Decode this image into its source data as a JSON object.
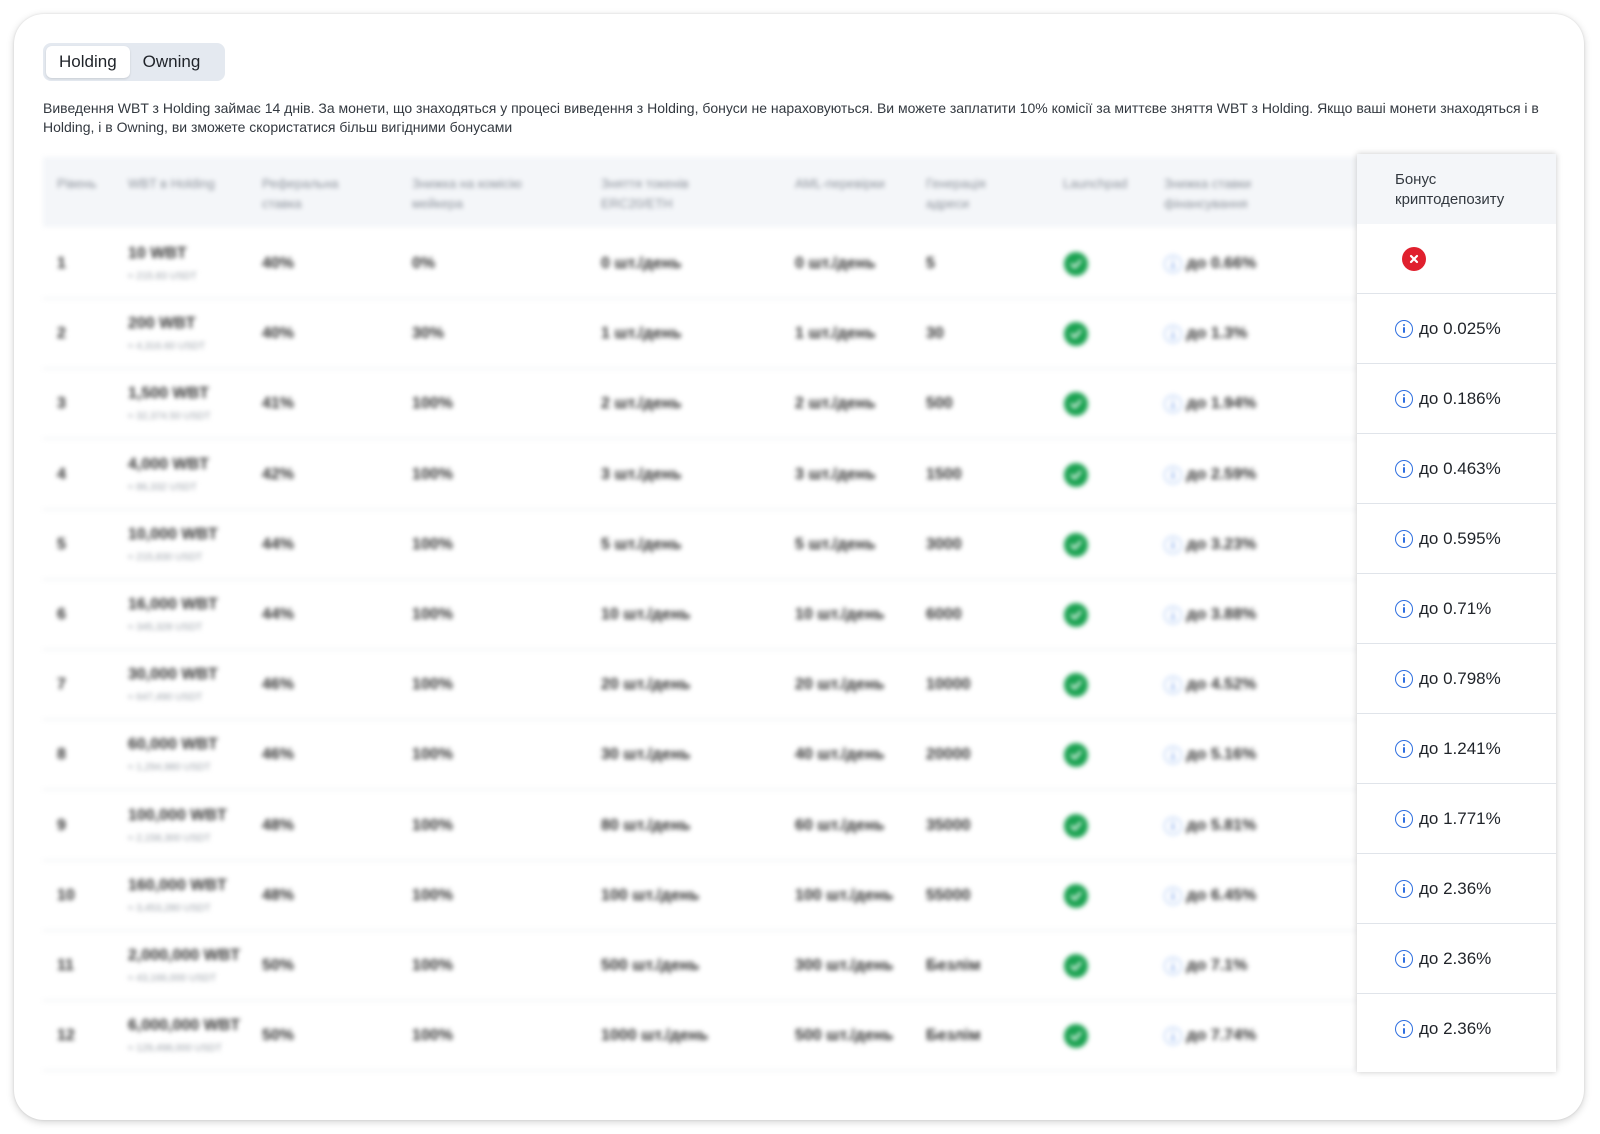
{
  "tabs": [
    {
      "label": "Holding",
      "active": true
    },
    {
      "label": "Owning",
      "active": false
    }
  ],
  "description": "Виведення WBT з Holding займає 14 днів. За монети, що знаходяться у процесі виведення з Holding, бонуси не нараховуються. Ви можете заплатити 10% комісії за миттєве зняття WBT з Holding. Якщо ваші монети знаходяться і в Holding, і в Owning, ви зможете скористатися більш вигідними бонусами",
  "columns": [
    "Рівень",
    "WBT в Holding",
    "Реферальна ставка",
    "Знижка на комісію мейкера",
    "Зняття токенів ERC20/ETH",
    "AML-перевірки",
    "Генерація адреси",
    "Launchpad",
    "Знижка ставки фінансування",
    "Бонус криптодепозиту"
  ],
  "rows": [
    {
      "level": "1",
      "wbt": "10 WBT",
      "usdt": "≈ 215.83 USDT",
      "ref": "40%",
      "maker": "0%",
      "erc": "0 шт./день",
      "aml": "0 шт./день",
      "addr": "5",
      "launchpad": true,
      "funding": "до 0.66%",
      "bonus": null
    },
    {
      "level": "2",
      "wbt": "200 WBT",
      "usdt": "≈ 4,316.60 USDT",
      "ref": "40%",
      "maker": "30%",
      "erc": "1 шт./день",
      "aml": "1 шт./день",
      "addr": "30",
      "launchpad": true,
      "funding": "до 1.3%",
      "bonus": "до 0.025%"
    },
    {
      "level": "3",
      "wbt": "1,500 WBT",
      "usdt": "≈ 32,374.50 USDT",
      "ref": "41%",
      "maker": "100%",
      "erc": "2 шт./день",
      "aml": "2 шт./день",
      "addr": "500",
      "launchpad": true,
      "funding": "до 1.94%",
      "bonus": "до 0.186%"
    },
    {
      "level": "4",
      "wbt": "4,000 WBT",
      "usdt": "≈ 86,332 USDT",
      "ref": "42%",
      "maker": "100%",
      "erc": "3 шт./день",
      "aml": "3 шт./день",
      "addr": "1500",
      "launchpad": true,
      "funding": "до 2.59%",
      "bonus": "до 0.463%"
    },
    {
      "level": "5",
      "wbt": "10,000 WBT",
      "usdt": "≈ 215,830 USDT",
      "ref": "44%",
      "maker": "100%",
      "erc": "5 шт./день",
      "aml": "5 шт./день",
      "addr": "3000",
      "launchpad": true,
      "funding": "до 3.23%",
      "bonus": "до 0.595%"
    },
    {
      "level": "6",
      "wbt": "16,000 WBT",
      "usdt": "≈ 345,328 USDT",
      "ref": "44%",
      "maker": "100%",
      "erc": "10 шт./день",
      "aml": "10 шт./день",
      "addr": "6000",
      "launchpad": true,
      "funding": "до 3.88%",
      "bonus": "до 0.71%"
    },
    {
      "level": "7",
      "wbt": "30,000 WBT",
      "usdt": "≈ 647,490 USDT",
      "ref": "46%",
      "maker": "100%",
      "erc": "20 шт./день",
      "aml": "20 шт./день",
      "addr": "10000",
      "launchpad": true,
      "funding": "до 4.52%",
      "bonus": "до 0.798%"
    },
    {
      "level": "8",
      "wbt": "60,000 WBT",
      "usdt": "≈ 1,294,980 USDT",
      "ref": "46%",
      "maker": "100%",
      "erc": "30 шт./день",
      "aml": "40 шт./день",
      "addr": "20000",
      "launchpad": true,
      "funding": "до 5.16%",
      "bonus": "до 1.241%"
    },
    {
      "level": "9",
      "wbt": "100,000 WBT",
      "usdt": "≈ 2,158,300 USDT",
      "ref": "48%",
      "maker": "100%",
      "erc": "80 шт./день",
      "aml": "60 шт./день",
      "addr": "35000",
      "launchpad": true,
      "funding": "до 5.81%",
      "bonus": "до 1.771%"
    },
    {
      "level": "10",
      "wbt": "160,000 WBT",
      "usdt": "≈ 3,453,280 USDT",
      "ref": "48%",
      "maker": "100%",
      "erc": "100 шт./день",
      "aml": "100 шт./день",
      "addr": "55000",
      "launchpad": true,
      "funding": "до 6.45%",
      "bonus": "до 2.36%"
    },
    {
      "level": "11",
      "wbt": "2,000,000 WBT",
      "usdt": "≈ 43,166,000 USDT",
      "ref": "50%",
      "maker": "100%",
      "erc": "500 шт./день",
      "aml": "300 шт./день",
      "addr": "Безлім",
      "launchpad": true,
      "funding": "до 7.1%",
      "bonus": "до 2.36%"
    },
    {
      "level": "12",
      "wbt": "6,000,000 WBT",
      "usdt": "≈ 129,498,000 USDT",
      "ref": "50%",
      "maker": "100%",
      "erc": "1000 шт./день",
      "aml": "500 шт./день",
      "addr": "Безлім",
      "launchpad": true,
      "funding": "до 7.74%",
      "bonus": "до 2.36%"
    }
  ],
  "colors": {
    "check": "#1aa251",
    "cross": "#e0202e",
    "info": "#2f6fe0",
    "tab_bg": "#e4e9f0"
  }
}
